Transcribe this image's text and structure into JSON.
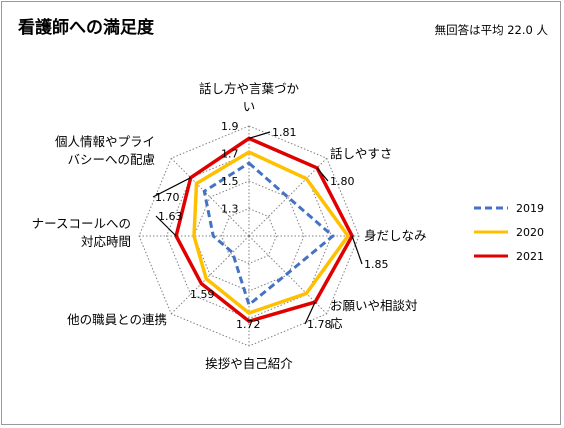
{
  "header": {
    "title": "看護師への満足度",
    "note": "無回答は平均 22.0 人"
  },
  "colors": {
    "s2019": "#4472C4",
    "s2020": "#FFC000",
    "s2021": "#E00000",
    "grid": "#808080"
  },
  "chart_data": {
    "type": "radar",
    "title": "看護師への満足度",
    "categories": [
      "話し方や言葉づかい",
      "話しやすさ",
      "身だしなみ",
      "お願いや相談対応",
      "挨拶や自己紹介",
      "他の職員との連携",
      "ナースコールへの対応時間",
      "個人情報やプライバシーへの配慮"
    ],
    "category_lines": [
      [
        "話し方や言葉づか",
        "い"
      ],
      [
        "話しやすさ"
      ],
      [
        "身だしなみ"
      ],
      [
        "お願いや相談対",
        "応"
      ],
      [
        "挨拶や自己紹介"
      ],
      [
        "他の職員との連携"
      ],
      [
        "ナースコールへの",
        "対応時間"
      ],
      [
        "個人情報やプライ",
        "バシーへの配慮"
      ]
    ],
    "rlim": [
      1.1,
      1.9
    ],
    "ticks": [
      1.1,
      1.3,
      1.5,
      1.7,
      1.9
    ],
    "tick_labels": [
      "1.3",
      "1.5",
      "1.7",
      "1.9"
    ],
    "series": [
      {
        "name": "2019",
        "style": "dashed",
        "values": [
          1.63,
          1.5,
          1.71,
          1.49,
          1.6,
          1.27,
          1.36,
          1.56
        ]
      },
      {
        "name": "2020",
        "style": "solid",
        "values": [
          1.71,
          1.69,
          1.82,
          1.69,
          1.66,
          1.54,
          1.5,
          1.64
        ]
      },
      {
        "name": "2021",
        "style": "solid",
        "values": [
          1.81,
          1.8,
          1.85,
          1.78,
          1.72,
          1.59,
          1.63,
          1.7
        ]
      }
    ],
    "data_labels": [
      "1.81",
      "1.80",
      "1.85",
      "1.78",
      "1.72",
      "1.59",
      "1.63",
      "1.70"
    ],
    "legend": {
      "position": "right"
    }
  }
}
